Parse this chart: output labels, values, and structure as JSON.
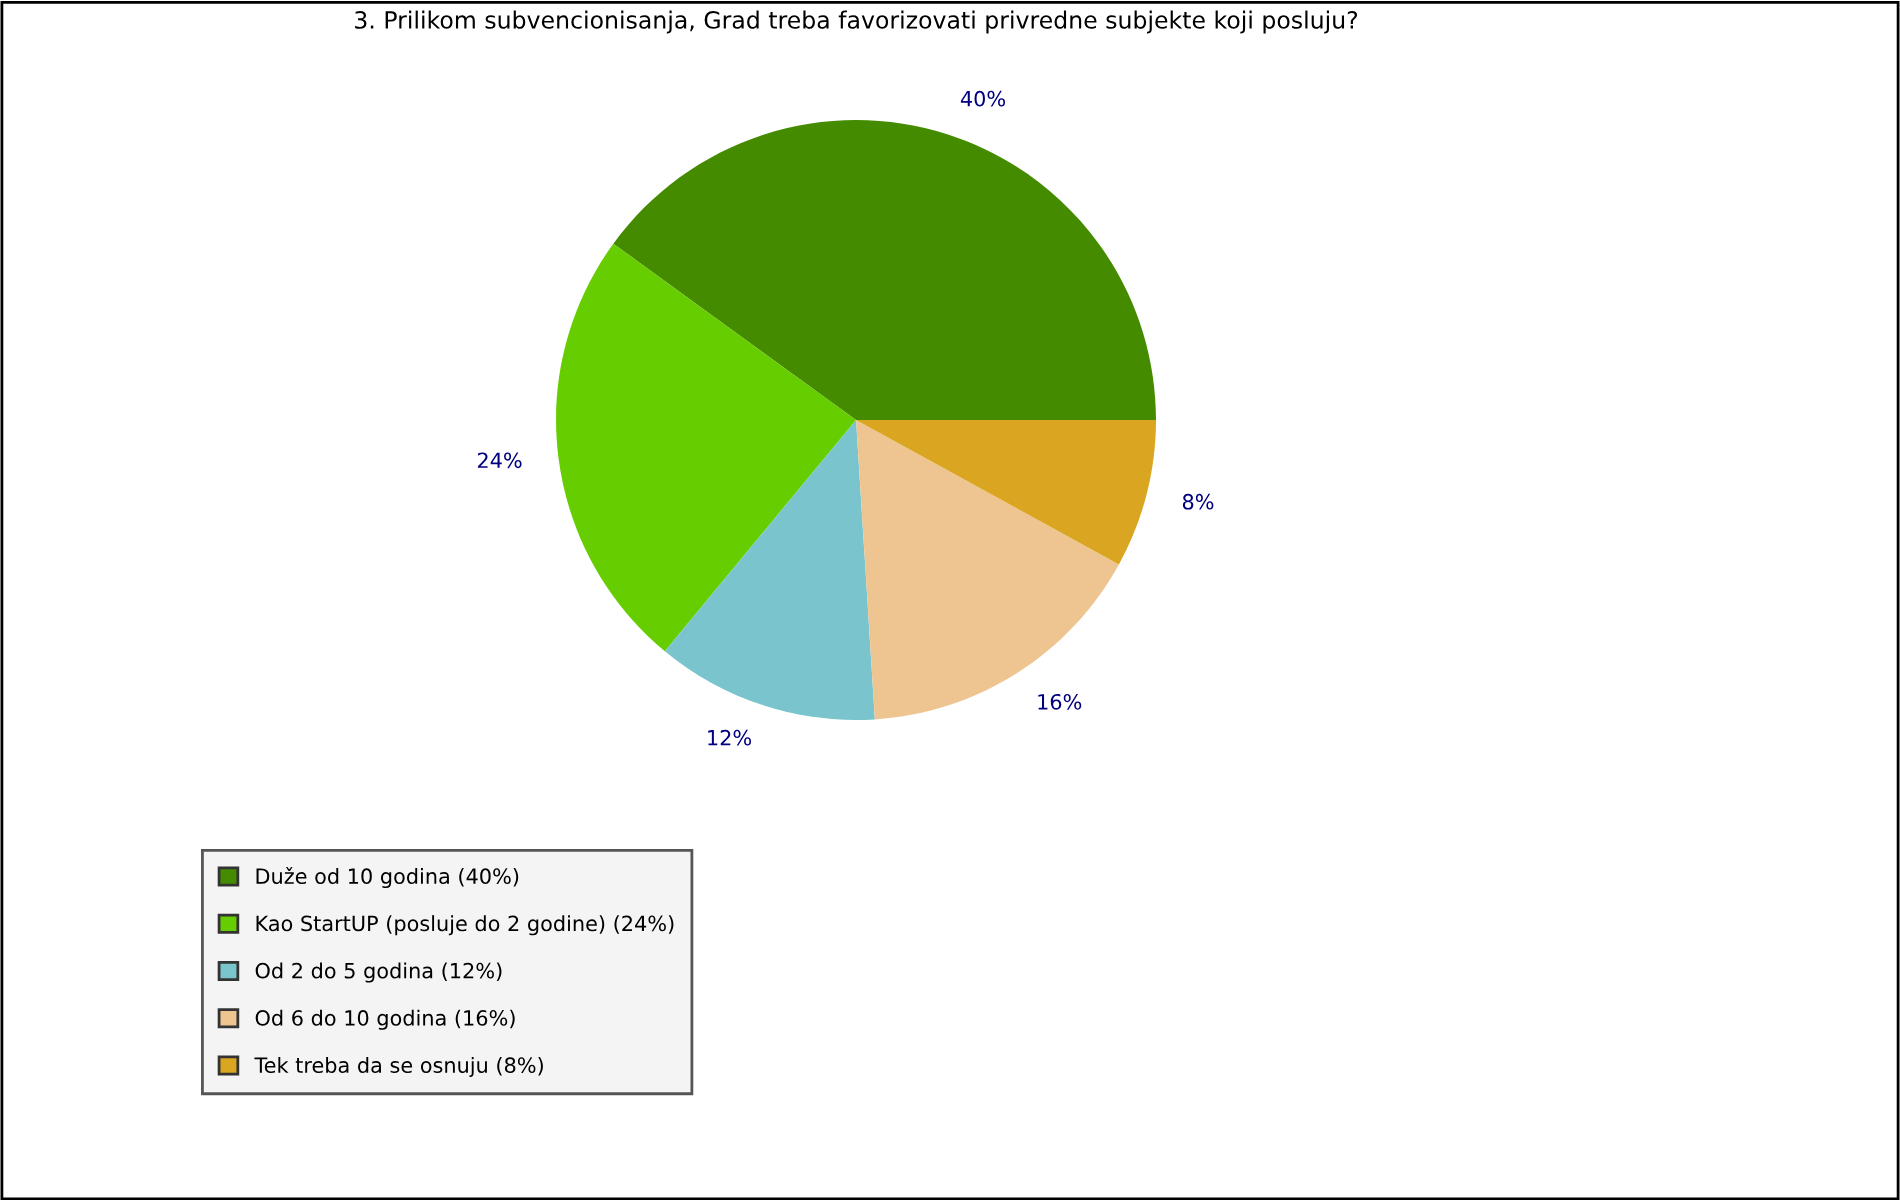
{
  "chart_data": {
    "type": "pie",
    "title": "3. Prilikom subvencionisanja, Grad treba favorizovati privredne subjekte koji posluju?",
    "categories": [
      "Duže od 10 godina (40%)",
      "Kao StartUP (posluje do 2 godine) (24%)",
      "Od 2 do 5 godina (12%)",
      "Od 6 do 10 godina (16%)",
      "Tek treba da se osnuju (8%)"
    ],
    "values": [
      40,
      24,
      12,
      16,
      8
    ],
    "colors": [
      "#458b00",
      "#66cd00",
      "#7ac5cd",
      "#eec591",
      "#daa520"
    ],
    "value_labels": [
      "40%",
      "24%",
      "12%",
      "16%",
      "8%"
    ],
    "legend": "bottom left"
  }
}
